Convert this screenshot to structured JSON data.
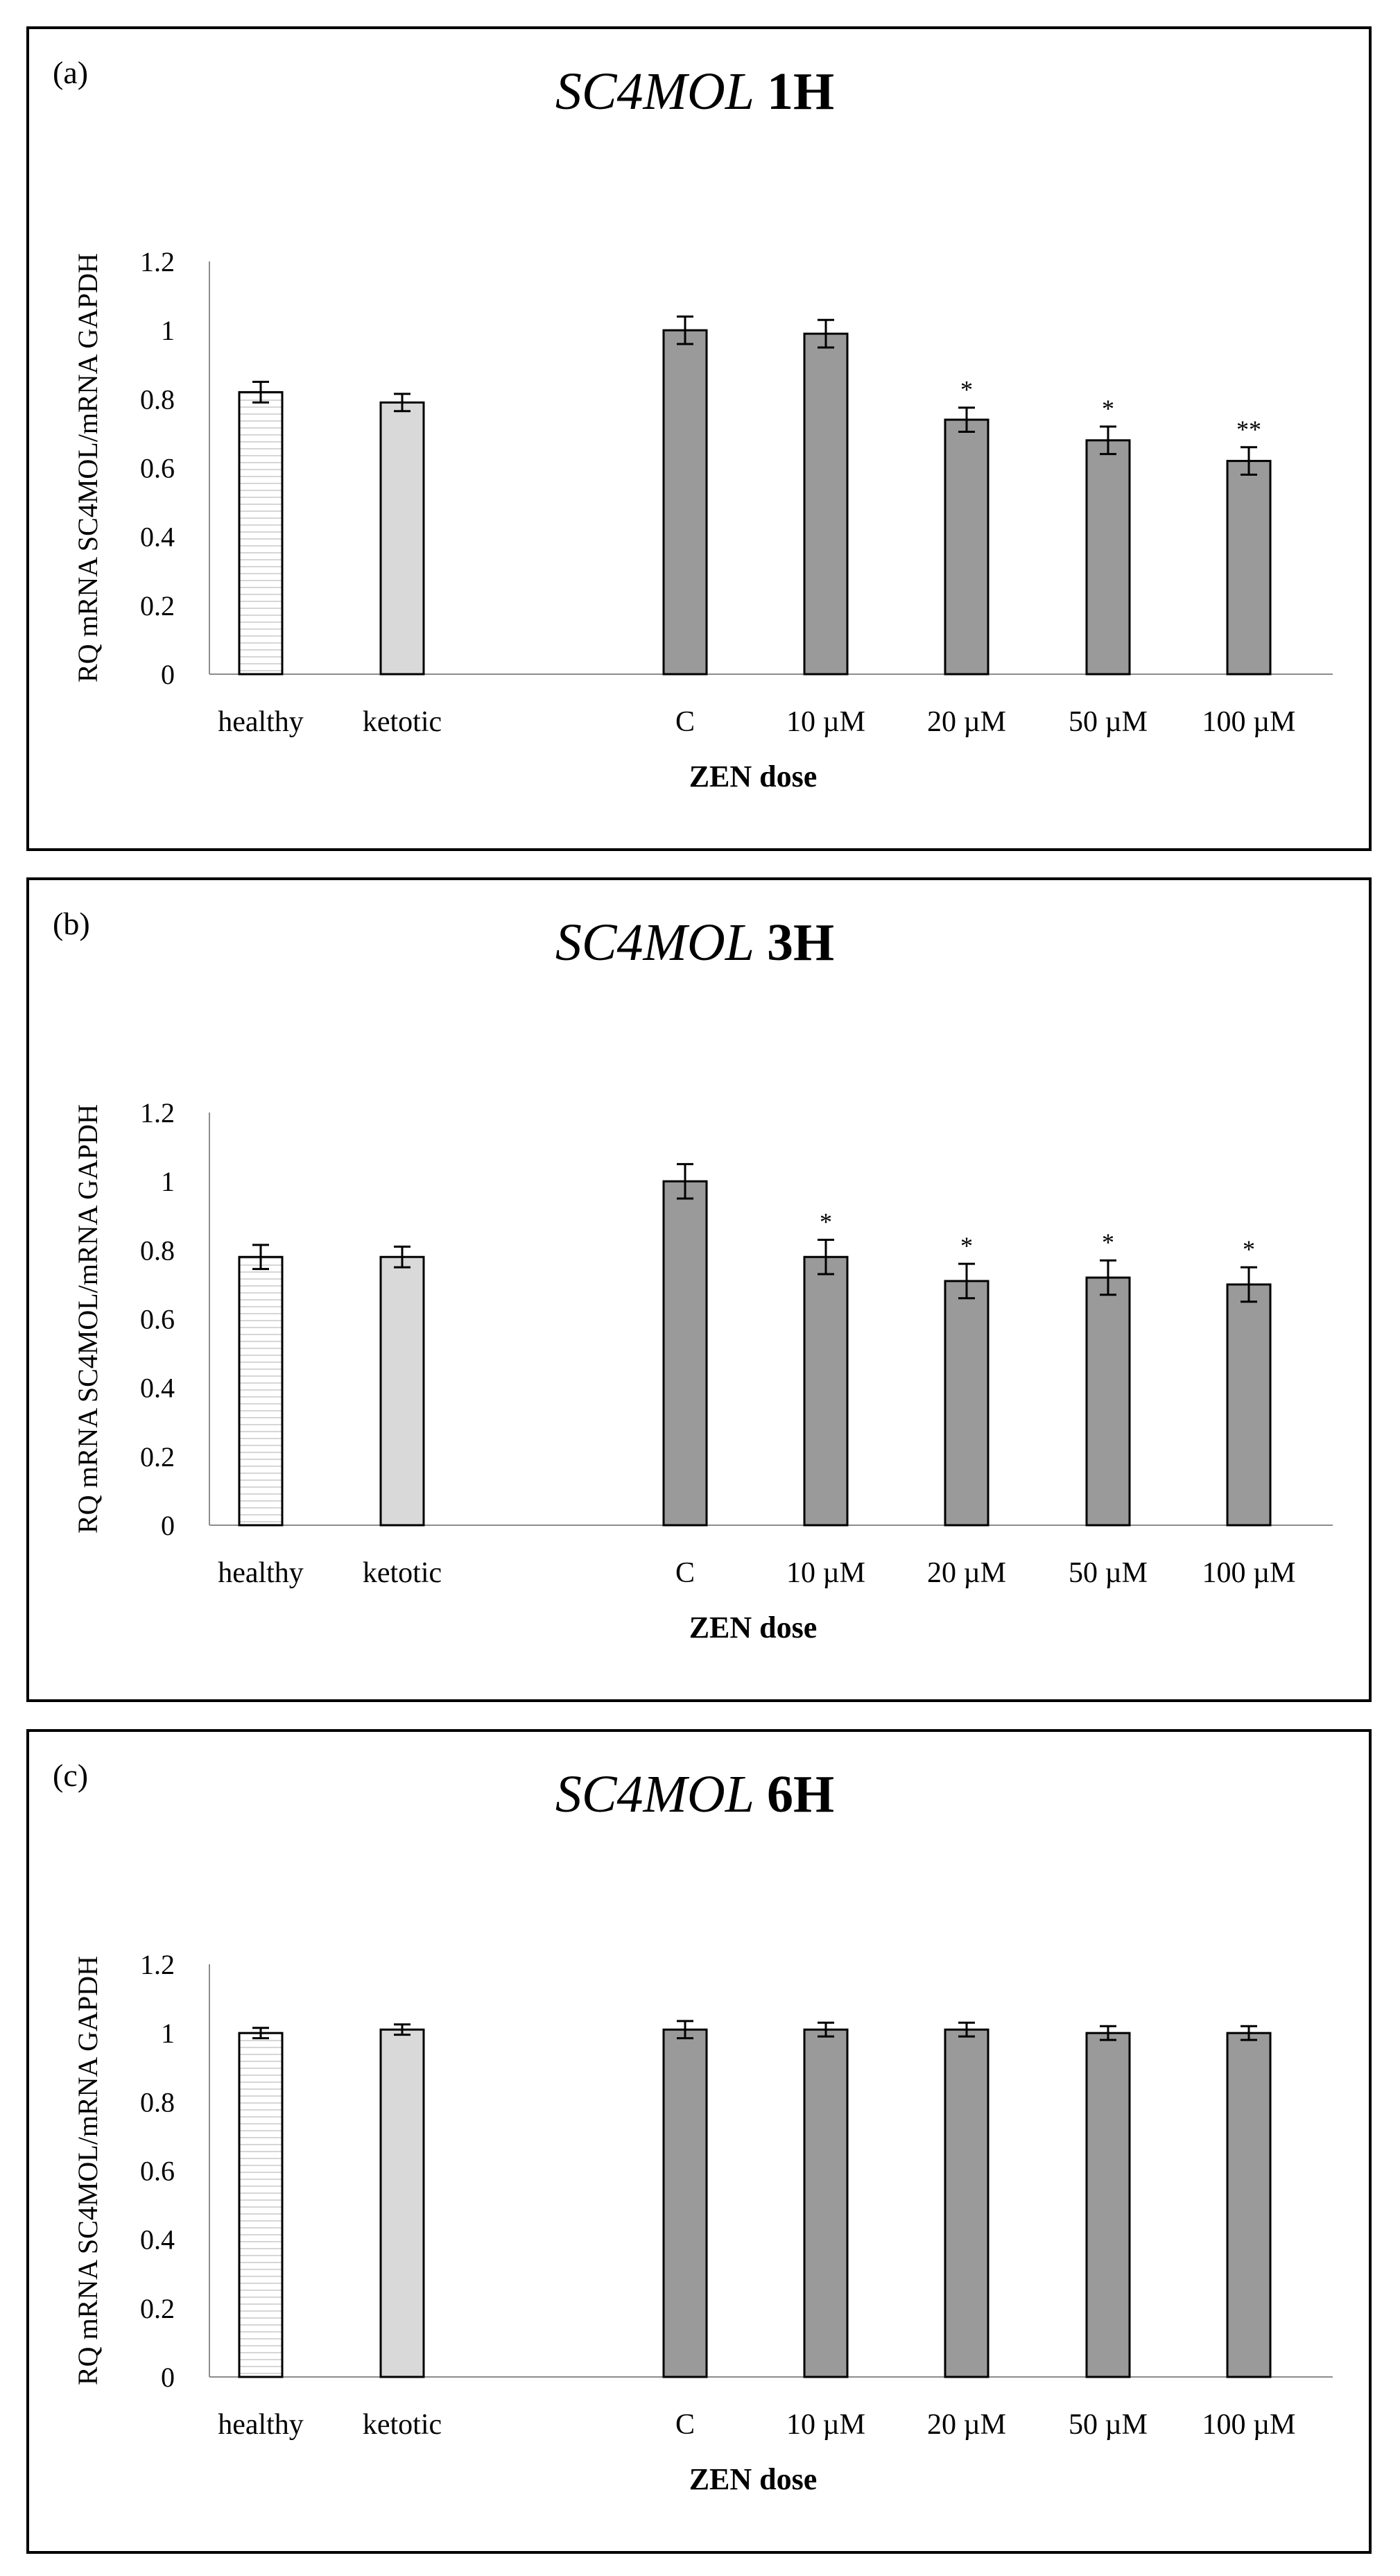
{
  "colors": {
    "healthy_fill": "#ffffff",
    "ketotic_fill": "#d9d9d9",
    "zen_fill": "#9a9a9a",
    "stroke": "#000000",
    "axis": "#8c8c8c",
    "hatch": "#c8c8c8"
  },
  "chart_data": [
    {
      "type": "bar",
      "panel_label": "(a)",
      "title_italic": "SC4MOL",
      "title_bold": "1H",
      "ylabel": "RQ mRNA SC4MOL/mRNA GAPDH",
      "xlabel": "ZEN dose",
      "ylim": [
        0,
        1.2
      ],
      "yticks": [
        "0",
        "0.2",
        "0.4",
        "0.6",
        "0.8",
        "1",
        "1.2"
      ],
      "categories": [
        "healthy",
        "ketotic",
        "C",
        "10 µM",
        "20 µM",
        "50 µM",
        "100 µM"
      ],
      "values": [
        0.82,
        0.79,
        1.0,
        0.99,
        0.74,
        0.68,
        0.62
      ],
      "errors": [
        0.03,
        0.025,
        0.04,
        0.04,
        0.035,
        0.04,
        0.04
      ],
      "significance": [
        "",
        "",
        "",
        "",
        "*",
        "*",
        "**"
      ]
    },
    {
      "type": "bar",
      "panel_label": "(b)",
      "title_italic": "SC4MOL",
      "title_bold": "3H",
      "ylabel": "RQ mRNA SC4MOL/mRNA GAPDH",
      "xlabel": "ZEN dose",
      "ylim": [
        0,
        1.2
      ],
      "yticks": [
        "0",
        "0.2",
        "0.4",
        "0.6",
        "0.8",
        "1",
        "1.2"
      ],
      "categories": [
        "healthy",
        "ketotic",
        "C",
        "10 µM",
        "20 µM",
        "50 µM",
        "100 µM"
      ],
      "values": [
        0.78,
        0.78,
        1.0,
        0.78,
        0.71,
        0.72,
        0.7
      ],
      "errors": [
        0.035,
        0.03,
        0.05,
        0.05,
        0.05,
        0.05,
        0.05
      ],
      "significance": [
        "",
        "",
        "",
        "*",
        "*",
        "*",
        "*"
      ]
    },
    {
      "type": "bar",
      "panel_label": "(c)",
      "title_italic": "SC4MOL",
      "title_bold": "6H",
      "ylabel": "RQ mRNA SC4MOL/mRNA GAPDH",
      "xlabel": "ZEN dose",
      "ylim": [
        0,
        1.2
      ],
      "yticks": [
        "0",
        "0.2",
        "0.4",
        "0.6",
        "0.8",
        "1",
        "1.2"
      ],
      "categories": [
        "healthy",
        "ketotic",
        "C",
        "10 µM",
        "20 µM",
        "50 µM",
        "100 µM"
      ],
      "values": [
        1.0,
        1.01,
        1.01,
        1.01,
        1.01,
        1.0,
        1.0
      ],
      "errors": [
        0.015,
        0.015,
        0.025,
        0.02,
        0.02,
        0.02,
        0.02
      ],
      "significance": [
        "",
        "",
        "",
        "",
        "",
        "",
        ""
      ]
    }
  ]
}
